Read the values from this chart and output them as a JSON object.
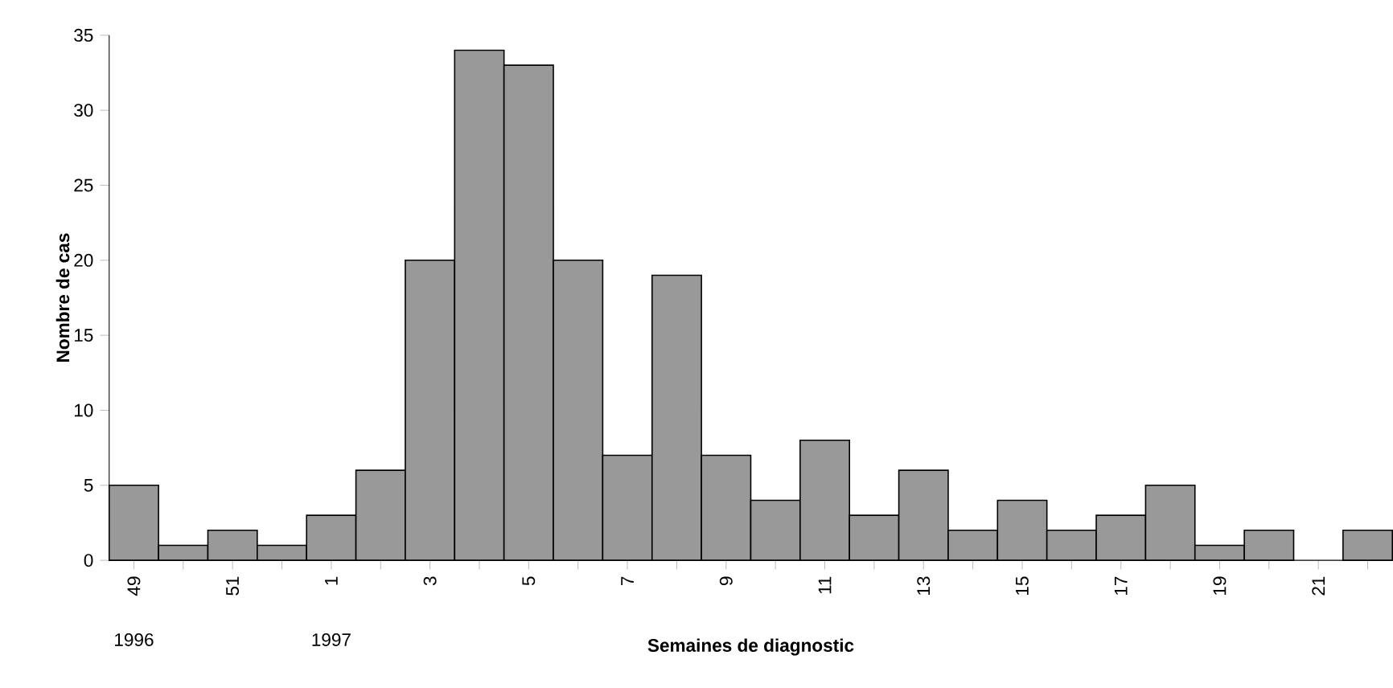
{
  "chart_data": {
    "type": "bar",
    "xlabel": "Semaines de diagnostic",
    "ylabel": "Nombre de cas",
    "categories": [
      "49",
      null,
      "51",
      null,
      "1",
      null,
      "3",
      null,
      "5",
      null,
      "7",
      null,
      "9",
      null,
      "11",
      null,
      "13",
      null,
      "15",
      null,
      "17",
      null,
      "19",
      null,
      "21",
      null
    ],
    "values": [
      5,
      1,
      2,
      1,
      3,
      6,
      20,
      34,
      33,
      20,
      7,
      19,
      7,
      4,
      8,
      3,
      6,
      2,
      4,
      2,
      3,
      5,
      1,
      2,
      0,
      2
    ],
    "color": "#999999",
    "ylim": [
      0,
      35
    ],
    "yticks": [
      0,
      5,
      10,
      15,
      20,
      25,
      30,
      35
    ],
    "grid": false,
    "annotations": [
      "1996",
      "1997"
    ]
  }
}
